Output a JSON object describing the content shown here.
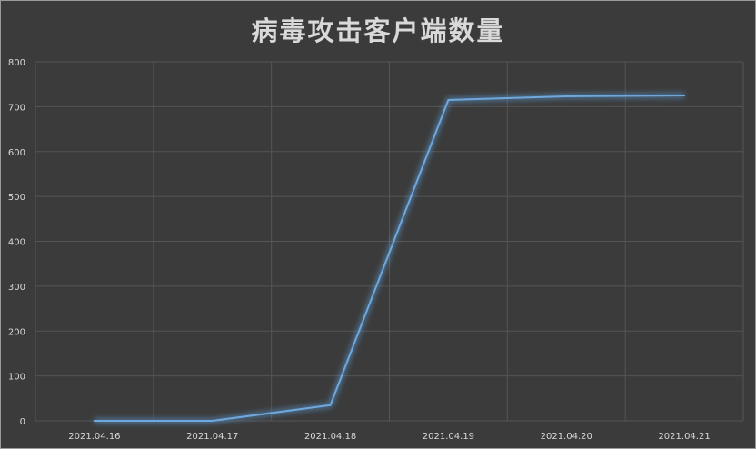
{
  "chart_data": {
    "type": "line",
    "title": "病毒攻击客户端数量",
    "xlabel": "",
    "ylabel": "",
    "categories": [
      "2021.04.16",
      "2021.04.17",
      "2021.04.18",
      "2021.04.19",
      "2021.04.20",
      "2021.04.21"
    ],
    "series": [
      {
        "values": [
          0,
          0,
          35,
          715,
          723,
          725
        ]
      }
    ],
    "ylim": [
      0,
      800
    ],
    "yticks": [
      "0",
      "100",
      "200",
      "300",
      "400",
      "500",
      "600",
      "700",
      "800"
    ],
    "grid": true,
    "legend": "none"
  },
  "colors": {
    "background": "#3b3b3b",
    "line": "#6fa8dc",
    "glow": "#5b9bd5",
    "text": "#d9d9d9",
    "grid": "#555555"
  }
}
